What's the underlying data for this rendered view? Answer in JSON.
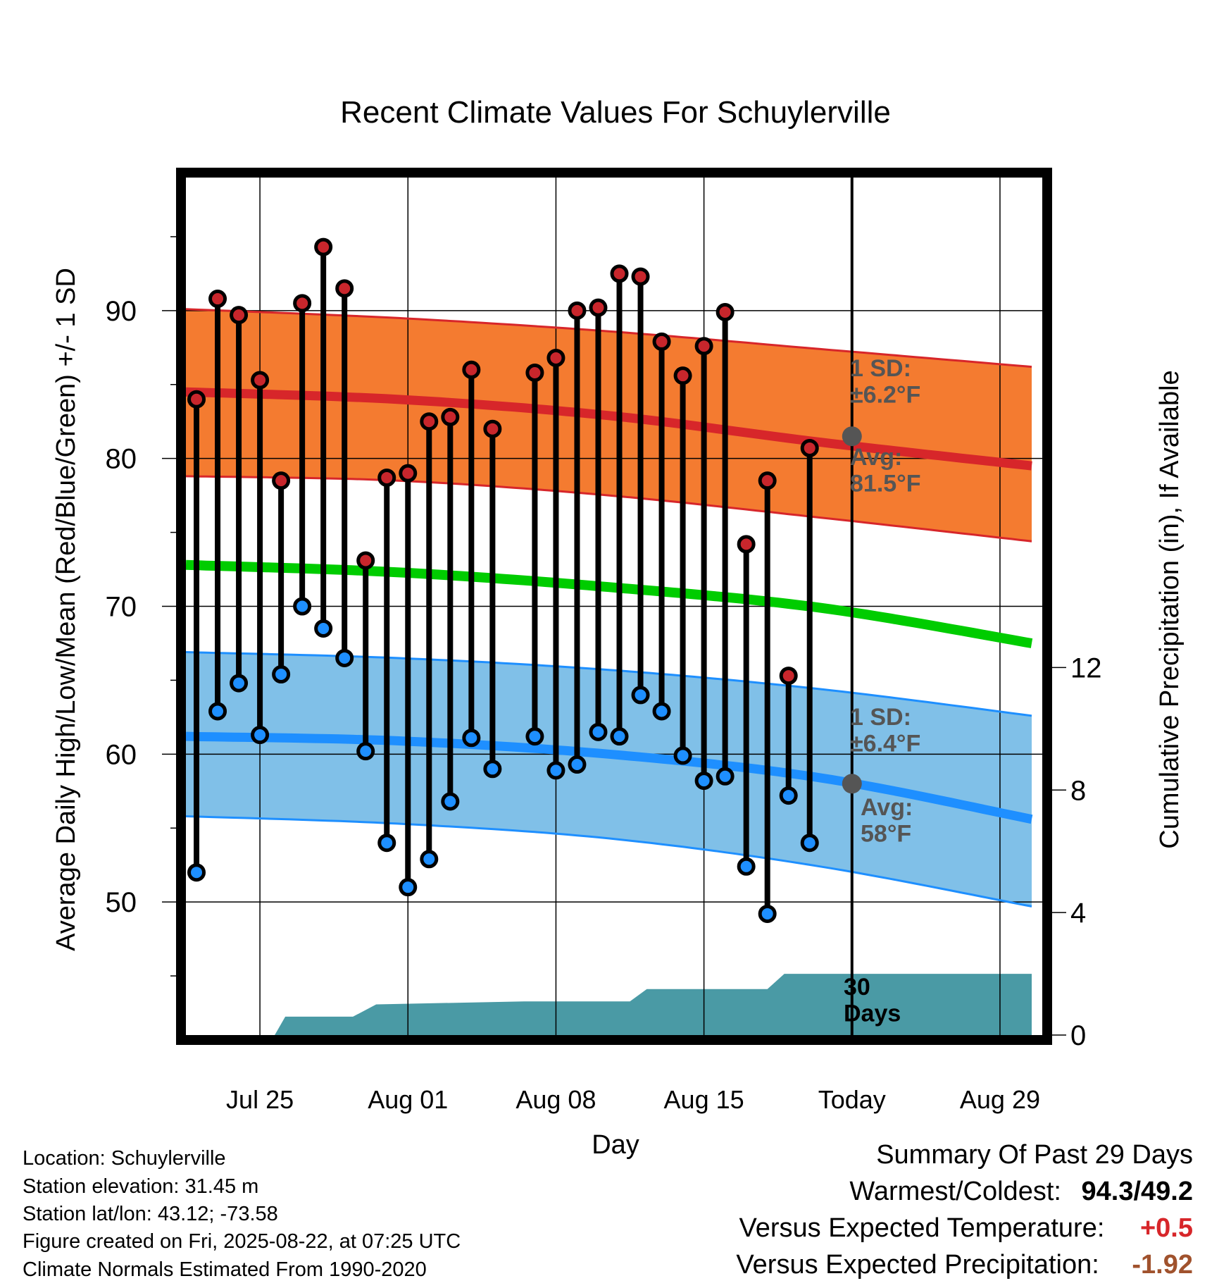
{
  "chart_data": {
    "type": "line",
    "title": "Recent Climate Values For Schuylerville",
    "xlabel": "Day",
    "ylabel": "Average Daily High/Low/Mean (Red/Blue/Green) +/- 1 SD",
    "ylabel_right": "Cumulative Precipitation (in), If Available",
    "x_tick_labels": [
      "Jul 25",
      "Aug 01",
      "Aug 08",
      "Aug 15",
      "Today",
      "Aug 29"
    ],
    "x_tick_days": [
      3,
      10,
      17,
      24,
      31,
      38
    ],
    "xlim_days": [
      -0.5,
      40
    ],
    "ylim": [
      41,
      99
    ],
    "y_ticks": [
      50,
      60,
      70,
      80,
      90
    ],
    "y2lim": [
      0,
      28
    ],
    "y2_ticks": [
      0,
      4,
      8,
      12
    ],
    "grid": true,
    "today_day": 31,
    "high_series": [
      {
        "day": 0,
        "v": 84.0
      },
      {
        "day": 1,
        "v": 90.8
      },
      {
        "day": 2,
        "v": 89.7
      },
      {
        "day": 3,
        "v": 85.3
      },
      {
        "day": 4,
        "v": 78.5
      },
      {
        "day": 5,
        "v": 90.5
      },
      {
        "day": 6,
        "v": 94.3
      },
      {
        "day": 7,
        "v": 91.5
      },
      {
        "day": 8,
        "v": 73.1
      },
      {
        "day": 9,
        "v": 78.7
      },
      {
        "day": 10,
        "v": 79.0
      },
      {
        "day": 11,
        "v": 82.5
      },
      {
        "day": 12,
        "v": 82.8
      },
      {
        "day": 13,
        "v": 86.0
      },
      {
        "day": 14,
        "v": 82.0
      },
      {
        "day": 16,
        "v": 85.8
      },
      {
        "day": 17,
        "v": 86.8
      },
      {
        "day": 18,
        "v": 90.0
      },
      {
        "day": 19,
        "v": 90.2
      },
      {
        "day": 20,
        "v": 92.5
      },
      {
        "day": 21,
        "v": 92.3
      },
      {
        "day": 22,
        "v": 87.9
      },
      {
        "day": 23,
        "v": 85.6
      },
      {
        "day": 24,
        "v": 87.6
      },
      {
        "day": 25,
        "v": 89.9
      },
      {
        "day": 26,
        "v": 74.2
      },
      {
        "day": 27,
        "v": 78.5
      },
      {
        "day": 28,
        "v": 65.3
      },
      {
        "day": 29,
        "v": 80.7
      }
    ],
    "low_series": [
      {
        "day": 0,
        "v": 52.0
      },
      {
        "day": 1,
        "v": 62.9
      },
      {
        "day": 2,
        "v": 64.8
      },
      {
        "day": 3,
        "v": 61.3
      },
      {
        "day": 4,
        "v": 65.4
      },
      {
        "day": 5,
        "v": 70.0
      },
      {
        "day": 6,
        "v": 68.5
      },
      {
        "day": 7,
        "v": 66.5
      },
      {
        "day": 8,
        "v": 60.2
      },
      {
        "day": 9,
        "v": 54.0
      },
      {
        "day": 10,
        "v": 51.0
      },
      {
        "day": 11,
        "v": 52.9
      },
      {
        "day": 12,
        "v": 56.8
      },
      {
        "day": 13,
        "v": 61.1
      },
      {
        "day": 14,
        "v": 59.0
      },
      {
        "day": 16,
        "v": 61.2
      },
      {
        "day": 17,
        "v": 58.9
      },
      {
        "day": 18,
        "v": 59.3
      },
      {
        "day": 19,
        "v": 61.5
      },
      {
        "day": 20,
        "v": 61.2
      },
      {
        "day": 21,
        "v": 64.0
      },
      {
        "day": 22,
        "v": 62.9
      },
      {
        "day": 23,
        "v": 59.9
      },
      {
        "day": 24,
        "v": 58.2
      },
      {
        "day": 25,
        "v": 58.5
      },
      {
        "day": 26,
        "v": 52.4
      },
      {
        "day": 27,
        "v": 49.2
      },
      {
        "day": 28,
        "v": 57.2
      },
      {
        "day": 29,
        "v": 54.0
      }
    ],
    "normal_high": {
      "days": [
        -0.5,
        9.5,
        19.5,
        29.5,
        39.5
      ],
      "values": [
        84.5,
        84.0,
        82.9,
        81.1,
        79.5
      ]
    },
    "normal_high_sd_upper": {
      "days": [
        -0.5,
        9.5,
        19.5,
        29.5,
        39.5
      ],
      "values": [
        90.1,
        89.5,
        88.6,
        87.4,
        86.2
      ]
    },
    "normal_high_sd_lower": {
      "days": [
        -0.5,
        9.5,
        19.5,
        29.5,
        39.5
      ],
      "values": [
        78.8,
        78.5,
        77.5,
        76.0,
        74.4
      ]
    },
    "normal_mean": {
      "days": [
        -0.5,
        9.5,
        19.5,
        29.5,
        39.5
      ],
      "values": [
        72.8,
        72.3,
        71.3,
        69.9,
        67.5
      ]
    },
    "normal_low": {
      "days": [
        -0.5,
        9.5,
        19.5,
        29.5,
        39.5
      ],
      "values": [
        61.2,
        60.9,
        60.0,
        58.4,
        55.6
      ]
    },
    "normal_low_sd_upper": {
      "days": [
        -0.5,
        9.5,
        19.5,
        29.5,
        39.5
      ],
      "values": [
        66.9,
        66.5,
        65.7,
        64.4,
        62.6
      ]
    },
    "normal_low_sd_lower": {
      "days": [
        -0.5,
        9.5,
        19.5,
        29.5,
        39.5
      ],
      "values": [
        55.8,
        55.3,
        54.3,
        52.4,
        49.7
      ]
    },
    "precip_cumulative_steps": [
      {
        "day": 3.7,
        "v": 0.0
      },
      {
        "day": 4.2,
        "v": 0.6
      },
      {
        "day": 7.4,
        "v": 0.6
      },
      {
        "day": 8.5,
        "v": 1.0
      },
      {
        "day": 15.5,
        "v": 1.1
      },
      {
        "day": 20.5,
        "v": 1.1
      },
      {
        "day": 21.3,
        "v": 1.5
      },
      {
        "day": 27.0,
        "v": 1.5
      },
      {
        "day": 27.8,
        "v": 2.0
      },
      {
        "day": 39.5,
        "v": 2.0
      }
    ],
    "annotations": [
      {
        "id": "high_sd_label",
        "lines": [
          "1 SD:",
          "±6.2°F"
        ]
      },
      {
        "id": "high_avg_label",
        "lines": [
          "Avg:",
          "81.5°F"
        ],
        "today_value": 81.5
      },
      {
        "id": "low_sd_label",
        "lines": [
          "1 SD:",
          "±6.4°F"
        ]
      },
      {
        "id": "low_avg_label",
        "lines": [
          "Avg:",
          "58°F"
        ],
        "today_value": 58.0
      },
      {
        "id": "precip_label",
        "lines": [
          "30",
          "Days"
        ]
      }
    ]
  },
  "colors": {
    "high_band": "#f47b30",
    "high_line": "#d7262a",
    "high_marker": "#c8262c",
    "low_band": "#80c0e8",
    "low_line": "#1e8fff",
    "low_marker": "#1e8fff",
    "mean_line": "#00cc00",
    "precip_fill": "#4a9aa5",
    "annotation_text": "#555555",
    "warm_value": "#d7262a",
    "precip_value": "#a0522d"
  },
  "info": {
    "location": "Location: Schuylerville",
    "elevation": "Station elevation: 31.45 m",
    "latlon": "Station lat/lon: 43.12; -73.58",
    "created": "Figure created on Fri, 2025-08-22, at 07:25 UTC",
    "normals": "Climate Normals Estimated From 1990-2020"
  },
  "summary": {
    "heading": "Summary Of Past 29 Days",
    "warm_cold_label": "Warmest/Coldest:",
    "warm_cold_value": "94.3/49.2",
    "temp_label": "Versus Expected Temperature:",
    "temp_value": "+0.5",
    "precip_label": "Versus Expected Precipitation:",
    "precip_value": "-1.92"
  }
}
